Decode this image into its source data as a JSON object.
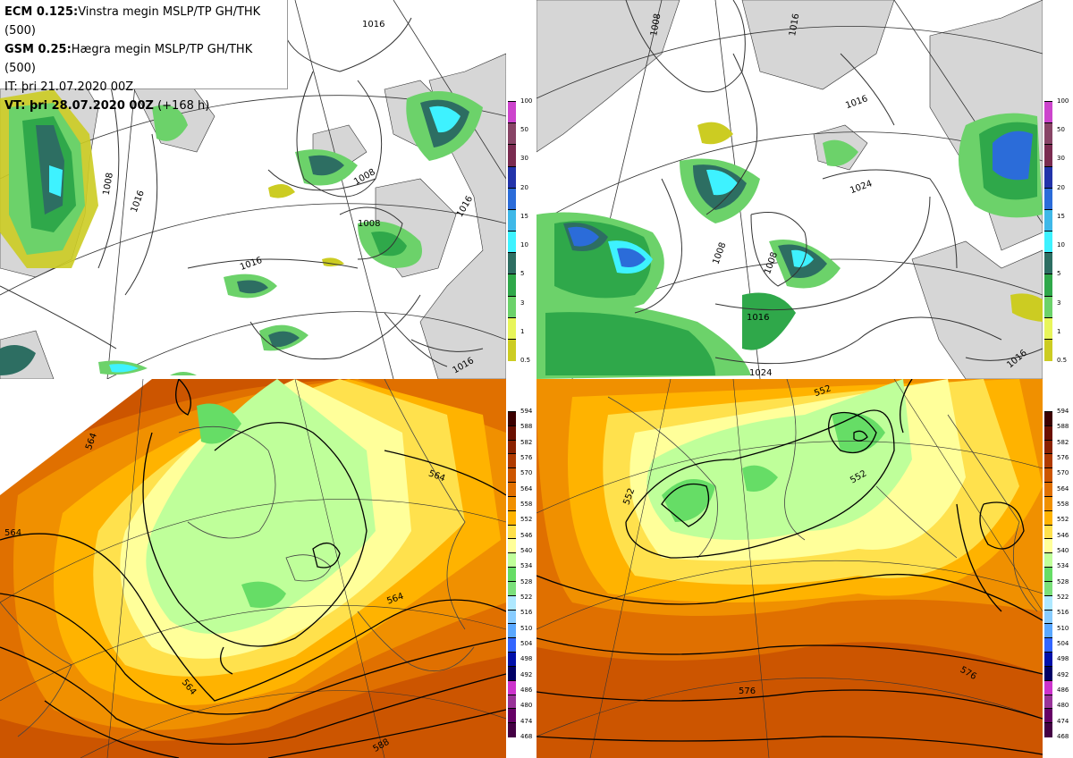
{
  "info": {
    "line1_model": "ECM 0.125:",
    "line1_text": "Vinstra megin MSLP/TP GH/THK (500)",
    "line2_model": "GSM 0.25:",
    "line2_text": "Hægra megin MSLP/TP GH/THK (500)",
    "line3": "IT: þri 21.07.2020 00Z",
    "line4_bold": "VT: þri 28.07.2020 00Z",
    "line4_rest": "(+168 h)"
  },
  "precip_scale": {
    "labels": [
      "100",
      "50",
      "30",
      "20",
      "15",
      "10",
      "5",
      "3",
      "1",
      "0.5"
    ],
    "colors": [
      "#cc44cc",
      "#884466",
      "#7a2b50",
      "#2233aa",
      "#2b6cd9",
      "#3fb8e8",
      "#3ef2ff",
      "#2d6e62",
      "#2fa84a",
      "#6cd26a",
      "#e8f55a",
      "#cccc22"
    ]
  },
  "height_scale": {
    "labels": [
      "594",
      "588",
      "582",
      "576",
      "570",
      "564",
      "558",
      "552",
      "546",
      "540",
      "534",
      "528",
      "522",
      "516",
      "510",
      "504",
      "498",
      "492",
      "486",
      "480",
      "474",
      "468"
    ],
    "colors": [
      "#3c0000",
      "#6b0f00",
      "#8b2200",
      "#b03b00",
      "#cc5500",
      "#e07000",
      "#f09000",
      "#ffb300",
      "#ffe14d",
      "#ffff9a",
      "#bfff9a",
      "#66dd66",
      "#7be07b",
      "#aee8ff",
      "#88ccff",
      "#5aa8ff",
      "#3366ff",
      "#0010aa",
      "#000066",
      "#cc33cc",
      "#993399",
      "#660066",
      "#440044"
    ]
  },
  "contour_labels": {
    "tl": [
      "1016",
      "1008",
      "1016",
      "1008",
      "1008",
      "1016",
      "1016",
      "1016"
    ],
    "tr": [
      "1008",
      "1016",
      "1016",
      "1008",
      "1024",
      "1008",
      "1016",
      "1024",
      "1016"
    ],
    "bl": [
      "564",
      "564",
      "564",
      "564",
      "564",
      "588"
    ],
    "br": [
      "552",
      "552",
      "552",
      "576",
      "576"
    ]
  }
}
